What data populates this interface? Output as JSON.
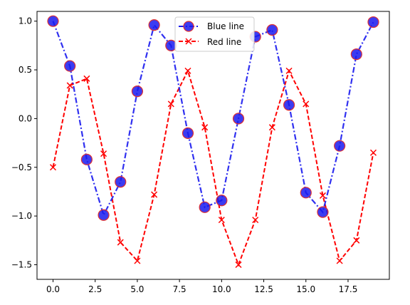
{
  "chart_data": {
    "type": "line",
    "x": [
      0,
      1,
      2,
      3,
      4,
      5,
      6,
      7,
      8,
      9,
      10,
      11,
      12,
      13,
      14,
      15,
      16,
      17,
      18,
      19
    ],
    "xlim": [
      -0.95,
      19.95
    ],
    "ylim": [
      -1.65,
      1.1
    ],
    "xticks": [
      0.0,
      2.5,
      5.0,
      7.5,
      10.0,
      12.5,
      15.0,
      17.5
    ],
    "xtick_labels": [
      "0.0",
      "2.5",
      "5.0",
      "7.5",
      "10.0",
      "12.5",
      "15.0",
      "17.5"
    ],
    "yticks": [
      1.0,
      0.5,
      0.0,
      -0.5,
      -1.0,
      -1.5
    ],
    "ytick_labels": [
      "1.0",
      "0.5",
      "0.0",
      "−0.5",
      "−1.0",
      "−1.5"
    ],
    "grid": false,
    "legend_position": "top-center",
    "series": [
      {
        "name": "Blue line",
        "color": "#1a1aee",
        "marker_edge_color": "#e03030",
        "linestyle": "dash-dot",
        "marker": "circle",
        "values": [
          1.0,
          0.54,
          -0.42,
          -0.99,
          -0.65,
          0.28,
          0.96,
          0.75,
          -0.15,
          -0.91,
          -0.84,
          0.0,
          0.84,
          0.91,
          0.14,
          -0.76,
          -0.96,
          -0.28,
          0.66,
          0.99
        ]
      },
      {
        "name": "Red line",
        "color": "#ff0000",
        "linestyle": "dashed",
        "marker": "x",
        "values": [
          -0.5,
          0.34,
          0.41,
          -0.36,
          -1.27,
          -1.46,
          -0.78,
          0.15,
          0.49,
          -0.09,
          -1.04,
          -1.5,
          -1.04,
          -0.09,
          0.49,
          0.15,
          -0.79,
          -1.46,
          -1.25,
          -0.35
        ]
      }
    ]
  }
}
